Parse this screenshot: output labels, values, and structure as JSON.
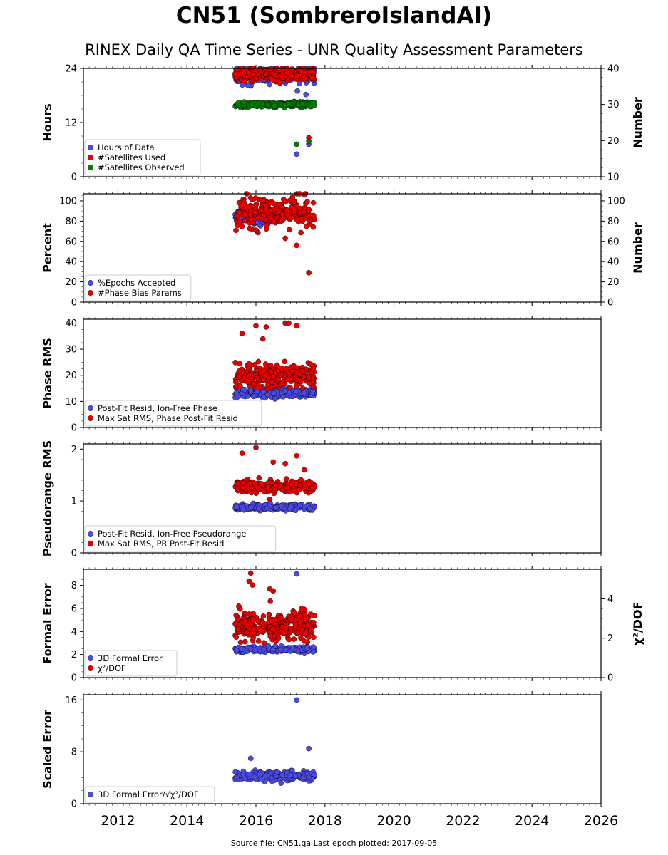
{
  "header": {
    "title": "CN51 (SombreroIslandAI)",
    "subtitle": "RINEX Daily QA Time Series - UNR Quality Assessment Parameters"
  },
  "footer": {
    "text": "Source file: CN51.qa Last epoch plotted: 2017-09-05"
  },
  "colors": {
    "blue": "#4a4ae8",
    "red": "#e60000",
    "green": "#007f00",
    "edge": "#000000"
  },
  "chart_data": [
    {
      "type": "scatter",
      "ylabel": "Hours",
      "ylabel_right": "Number",
      "ylim": [
        0,
        24
      ],
      "yticks": [
        0,
        12,
        24
      ],
      "ylim_right": [
        10,
        40
      ],
      "yticks_right": [
        10,
        20,
        30,
        40
      ],
      "legend_position": "lower-left",
      "series": [
        {
          "name": "Hours of Data",
          "color": "#4a4ae8",
          "axis": "left",
          "approx": {
            "x_range": [
              2015.4,
              2017.7
            ],
            "center": 22.5,
            "spread": 1.3
          },
          "outliers": [
            [
              2017.18,
              5.0
            ],
            [
              2017.53,
              7.2
            ],
            [
              2017.2,
              19.0
            ],
            [
              2017.45,
              18.2
            ]
          ]
        },
        {
          "name": "#Satellites Used",
          "color": "#e60000",
          "axis": "right",
          "approx": {
            "x_range": [
              2015.4,
              2017.7
            ],
            "center": 38.5,
            "spread": 1.2
          },
          "outliers": [
            [
              2017.53,
              20.8
            ]
          ]
        },
        {
          "name": "#Satellites Observed",
          "color": "#007f00",
          "axis": "right",
          "approx": {
            "x_range": [
              2015.4,
              2017.7
            ],
            "center": 30.0,
            "spread": 0.5
          },
          "outliers": [
            [
              2017.18,
              19.0
            ],
            [
              2017.53,
              19.8
            ]
          ]
        }
      ]
    },
    {
      "type": "scatter",
      "ylabel": "Percent",
      "ylabel_right": "Number",
      "ylim": [
        0,
        107
      ],
      "yticks": [
        0,
        20,
        40,
        60,
        80,
        100
      ],
      "ylim_right": [
        0,
        107
      ],
      "yticks_right": [
        0,
        20,
        40,
        60,
        80,
        100
      ],
      "legend_position": "lower-left",
      "series": [
        {
          "name": "%Epochs Accepted",
          "color": "#4a4ae8",
          "axis": "left",
          "approx": {
            "x_range": [
              2015.4,
              2016.7
            ],
            "center": 84,
            "spread": 4
          },
          "outliers": []
        },
        {
          "name": "#Phase Bias Params",
          "color": "#e60000",
          "axis": "right",
          "approx": {
            "x_range": [
              2015.4,
              2017.7
            ],
            "center": 88,
            "spread": 10
          },
          "outliers": [
            [
              2017.18,
              56
            ],
            [
              2017.53,
              29
            ],
            [
              2016.0,
              71
            ],
            [
              2016.85,
              63
            ]
          ]
        }
      ]
    },
    {
      "type": "scatter",
      "ylabel": "Phase RMS",
      "ylim": [
        0,
        41.5
      ],
      "yticks": [
        0,
        10,
        20,
        30,
        40
      ],
      "legend_position": "lower-left",
      "series": [
        {
          "name": "Post-Fit Resid, Ion-Free Phase",
          "color": "#4a4ae8",
          "approx": {
            "x_range": [
              2015.4,
              2017.7
            ],
            "center": 13.2,
            "spread": 1.1
          },
          "outliers": []
        },
        {
          "name": "Max Sat RMS, Phase Post-Fit Resid",
          "color": "#e60000",
          "approx": {
            "x_range": [
              2015.4,
              2017.7
            ],
            "center": 20,
            "spread": 3.2
          },
          "outliers": [
            [
              2015.6,
              36
            ],
            [
              2016.0,
              39
            ],
            [
              2016.3,
              38.5
            ],
            [
              2016.85,
              40
            ],
            [
              2016.95,
              40
            ],
            [
              2017.18,
              39
            ],
            [
              2016.2,
              34
            ]
          ]
        }
      ]
    },
    {
      "type": "scatter",
      "ylabel": "Pseudorange RMS",
      "ylim": [
        0,
        2.1
      ],
      "yticks": [
        0,
        1,
        2
      ],
      "legend_position": "lower-left",
      "series": [
        {
          "name": "Post-Fit Resid, Ion-Free Pseudorange",
          "color": "#4a4ae8",
          "approx": {
            "x_range": [
              2015.4,
              2017.7
            ],
            "center": 0.88,
            "spread": 0.04
          },
          "outliers": []
        },
        {
          "name": "Max Sat RMS, PR Post-Fit Resid",
          "color": "#e60000",
          "approx": {
            "x_range": [
              2015.4,
              2017.7
            ],
            "center": 1.28,
            "spread": 0.08
          },
          "outliers": [
            [
              2015.6,
              1.92
            ],
            [
              2016.0,
              2.03
            ],
            [
              2016.5,
              1.75
            ],
            [
              2016.85,
              1.72
            ],
            [
              2017.18,
              1.87
            ],
            [
              2017.4,
              1.6
            ]
          ]
        }
      ]
    },
    {
      "type": "scatter",
      "ylabel": "Formal Error",
      "ylabel_right": "χ²/DOF",
      "ylim": [
        0,
        9.4
      ],
      "yticks": [
        0,
        2,
        4,
        6,
        8
      ],
      "ylim_right": [
        0,
        5.5
      ],
      "yticks_right": [
        0,
        2,
        4
      ],
      "legend_position": "lower-left",
      "series": [
        {
          "name": "3D Formal Error",
          "color": "#4a4ae8",
          "axis": "left",
          "approx": {
            "x_range": [
              2015.4,
              2017.7
            ],
            "center": 2.45,
            "spread": 0.15
          },
          "outliers": [
            [
              2017.18,
              9.0
            ]
          ]
        },
        {
          "name": "χ²/DOF",
          "color": "#e60000",
          "axis": "right",
          "approx": {
            "x_range": [
              2015.4,
              2017.7
            ],
            "center": 2.6,
            "spread": 0.55
          },
          "outliers": [
            [
              2015.85,
              5.3
            ],
            [
              2015.8,
              4.9
            ],
            [
              2015.9,
              4.7
            ],
            [
              2016.4,
              4.5
            ],
            [
              2016.5,
              4.4
            ]
          ]
        }
      ]
    },
    {
      "type": "scatter",
      "ylabel": "Scaled Error",
      "ylim": [
        0,
        16.8
      ],
      "yticks": [
        0,
        8,
        16
      ],
      "legend_position": "lower-left",
      "series": [
        {
          "name": "3D Formal Error/√χ²/DOF",
          "color": "#4a4ae8",
          "approx": {
            "x_range": [
              2015.4,
              2017.7
            ],
            "center": 4.2,
            "spread": 0.5
          },
          "outliers": [
            [
              2017.18,
              16.0
            ],
            [
              2017.53,
              8.5
            ],
            [
              2015.85,
              7.0
            ]
          ]
        }
      ]
    }
  ],
  "x_axis": {
    "xlim": [
      2011.0,
      2026.0
    ],
    "xticks": [
      2012,
      2014,
      2016,
      2018,
      2020,
      2022,
      2024,
      2026
    ]
  }
}
